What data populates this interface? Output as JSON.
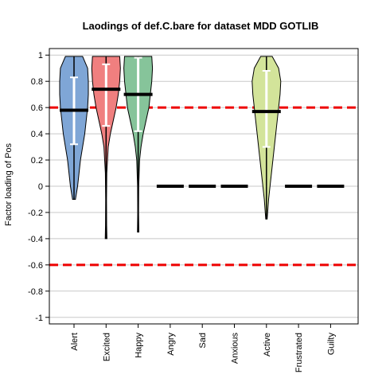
{
  "chart_data": {
    "type": "violin",
    "title": "Laodings of def.C.bare for dataset MDD GOTLIB",
    "xlabel": "",
    "ylabel": "Factor loading of Pos",
    "ylim": [
      -1.05,
      1.05
    ],
    "yticks": [
      1,
      0.8,
      0.6,
      0.4,
      0.2,
      0,
      -0.2,
      -0.4,
      -0.6,
      -0.8,
      -1
    ],
    "ytick_labels": [
      "1",
      "0.8",
      "0.6",
      "0.4",
      "0.2",
      "0",
      "-0.2",
      "-0.4",
      "-0.6",
      "-0.8",
      "-1"
    ],
    "grid": true,
    "reference_lines": [
      {
        "y": 0.6,
        "color": "#ee0000",
        "style": "dashed"
      },
      {
        "y": -0.6,
        "color": "#ee0000",
        "style": "dashed"
      }
    ],
    "categories": [
      "Alert",
      "Excited",
      "Happy",
      "Angry",
      "Sad",
      "Anxious",
      "Active",
      "Frustrated",
      "Guilty"
    ],
    "series": [
      {
        "category": "Alert",
        "color": "#7fa6d6",
        "median": 0.58,
        "q1": 0.32,
        "q3": 0.83,
        "min": -0.1,
        "max": 0.99,
        "density": [
          [
            -0.1,
            0.1
          ],
          [
            0.0,
            0.25
          ],
          [
            0.1,
            0.35
          ],
          [
            0.2,
            0.45
          ],
          [
            0.3,
            0.6
          ],
          [
            0.4,
            0.75
          ],
          [
            0.5,
            0.85
          ],
          [
            0.6,
            0.95
          ],
          [
            0.7,
            1.0
          ],
          [
            0.8,
            1.0
          ],
          [
            0.9,
            0.95
          ],
          [
            0.99,
            0.6
          ]
        ]
      },
      {
        "category": "Excited",
        "color": "#f07f7f",
        "median": 0.74,
        "q1": 0.46,
        "q3": 0.93,
        "min": -0.4,
        "max": 0.99,
        "density": [
          [
            -0.4,
            0.06
          ],
          [
            -0.3,
            0.04
          ],
          [
            -0.1,
            0.03
          ],
          [
            0.1,
            0.05
          ],
          [
            0.3,
            0.15
          ],
          [
            0.4,
            0.3
          ],
          [
            0.5,
            0.5
          ],
          [
            0.6,
            0.7
          ],
          [
            0.7,
            0.85
          ],
          [
            0.8,
            0.95
          ],
          [
            0.9,
            1.0
          ],
          [
            0.99,
            0.95
          ]
        ]
      },
      {
        "category": "Happy",
        "color": "#86c49a",
        "median": 0.7,
        "q1": 0.42,
        "q3": 0.98,
        "min": -0.35,
        "max": 0.99,
        "density": [
          [
            -0.35,
            0.05
          ],
          [
            -0.2,
            0.03
          ],
          [
            0.0,
            0.04
          ],
          [
            0.2,
            0.1
          ],
          [
            0.3,
            0.2
          ],
          [
            0.4,
            0.35
          ],
          [
            0.5,
            0.55
          ],
          [
            0.6,
            0.75
          ],
          [
            0.7,
            0.85
          ],
          [
            0.8,
            0.95
          ],
          [
            0.9,
            1.0
          ],
          [
            0.99,
            0.95
          ]
        ]
      },
      {
        "category": "Angry",
        "median": 0
      },
      {
        "category": "Sad",
        "median": 0
      },
      {
        "category": "Anxious",
        "median": 0
      },
      {
        "category": "Active",
        "color": "#d3e49a",
        "median": 0.57,
        "q1": 0.3,
        "q3": 0.88,
        "min": -0.25,
        "max": 0.99,
        "density": [
          [
            -0.25,
            0.05
          ],
          [
            -0.1,
            0.15
          ],
          [
            0.0,
            0.25
          ],
          [
            0.1,
            0.35
          ],
          [
            0.2,
            0.45
          ],
          [
            0.3,
            0.55
          ],
          [
            0.4,
            0.65
          ],
          [
            0.5,
            0.75
          ],
          [
            0.6,
            0.85
          ],
          [
            0.7,
            0.95
          ],
          [
            0.8,
            1.0
          ],
          [
            0.9,
            0.85
          ],
          [
            0.99,
            0.4
          ]
        ]
      },
      {
        "category": "Frustrated",
        "median": 0
      },
      {
        "category": "Guilty",
        "median": 0
      }
    ]
  }
}
